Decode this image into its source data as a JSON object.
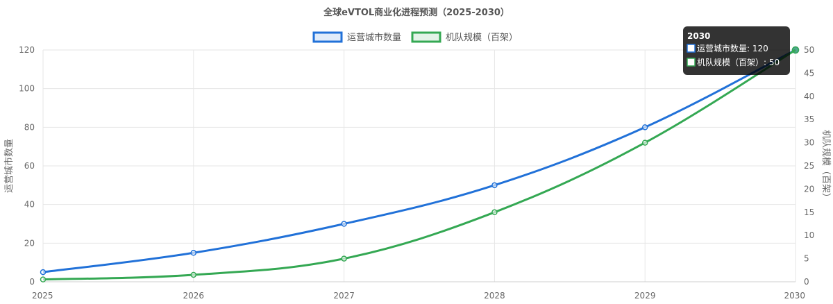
{
  "chart_data": {
    "type": "line",
    "title": "全球eVTOL商业化进程预测（2025-2030）",
    "categories": [
      "2025",
      "2026",
      "2027",
      "2028",
      "2029",
      "2030"
    ],
    "series": [
      {
        "name": "运营城市数量",
        "axis": "left",
        "color": "#2171d8",
        "values": [
          5,
          15,
          30,
          50,
          80,
          120
        ]
      },
      {
        "name": "机队规模（百架）",
        "axis": "right",
        "color": "#34a853",
        "values": [
          0.5,
          1.5,
          5,
          15,
          30,
          50
        ]
      }
    ],
    "y_left": {
      "label": "运营城市数量",
      "min": 0,
      "max": 120,
      "step": 20
    },
    "y_right": {
      "label": "机队规模（百架）",
      "min": 0,
      "max": 50,
      "step": 5
    },
    "grid": true,
    "legend_position": "top",
    "tooltip": {
      "title": "2030",
      "lines": [
        "运营城市数量: 120",
        "机队规模（百架）: 50"
      ]
    }
  }
}
